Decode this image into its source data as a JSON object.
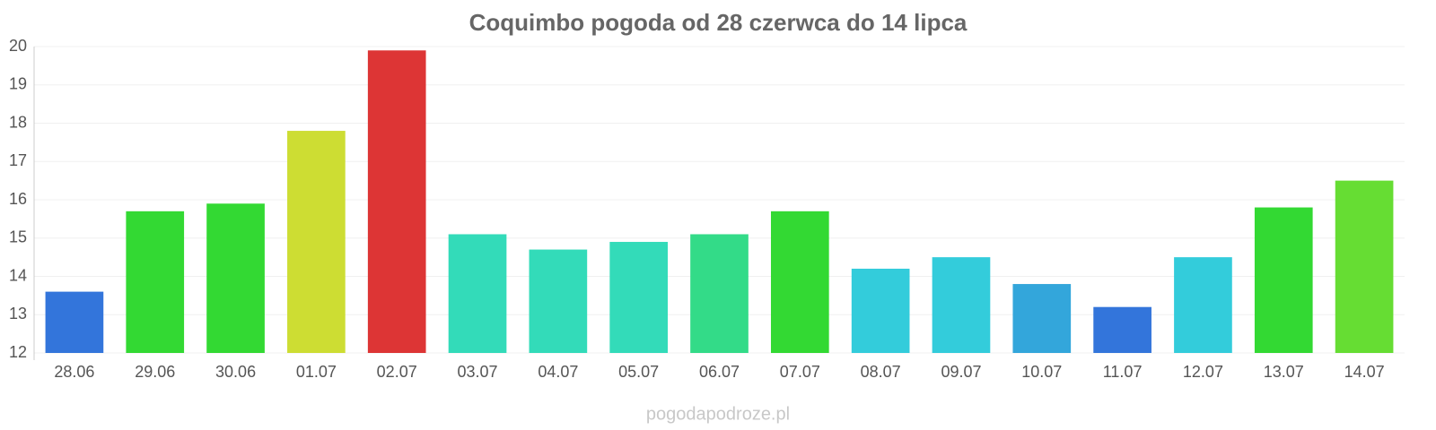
{
  "chart_data": {
    "type": "bar",
    "title": "Coquimbo pogoda od 28 czerwca do 14 lipca",
    "categories": [
      "28.06",
      "29.06",
      "30.06",
      "01.07",
      "02.07",
      "03.07",
      "04.07",
      "05.07",
      "06.07",
      "07.07",
      "08.07",
      "09.07",
      "10.07",
      "11.07",
      "12.07",
      "13.07",
      "14.07"
    ],
    "values": [
      13.6,
      15.7,
      15.9,
      17.8,
      19.9,
      15.1,
      14.7,
      14.9,
      15.1,
      15.7,
      14.2,
      14.5,
      13.8,
      13.2,
      14.5,
      15.8,
      16.5
    ],
    "colors": [
      "#3375db",
      "#33d933",
      "#33d933",
      "#cddd33",
      "#dd3535",
      "#33dbb9",
      "#33dbb9",
      "#33dbb9",
      "#33db88",
      "#33d933",
      "#33ccdb",
      "#33ccdb",
      "#33a6db",
      "#3375db",
      "#33ccdb",
      "#33d933",
      "#66dd33"
    ],
    "ylim": [
      12,
      20
    ],
    "yticks": [
      12,
      13,
      14,
      15,
      16,
      17,
      18,
      19,
      20
    ],
    "grid": true,
    "watermark": "pogodapodroze.pl"
  }
}
